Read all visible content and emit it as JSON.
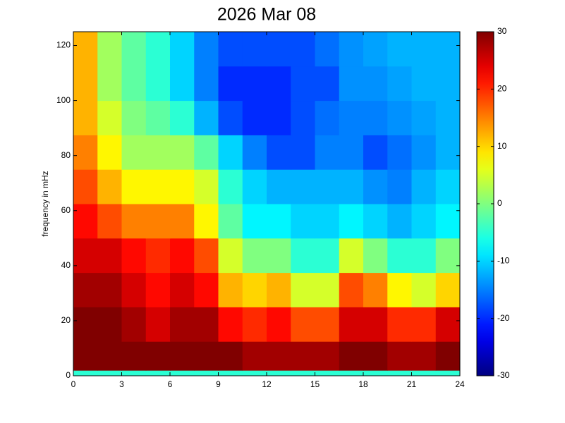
{
  "chart_data": {
    "type": "heatmap",
    "title": "2026 Mar 08",
    "y_label": "frequency in mHz",
    "x_edges": [
      0,
      1.5,
      3,
      4.5,
      6,
      7.5,
      9,
      10.5,
      12,
      13.5,
      15,
      16.5,
      18,
      19.5,
      21,
      22.5,
      24
    ],
    "y_edges": [
      0,
      2,
      12.5,
      25,
      37.5,
      50,
      62.5,
      75,
      87.5,
      100,
      112.5,
      125
    ],
    "z": [
      [
        -5,
        -5,
        -5,
        -5,
        -5,
        -5,
        -5,
        -5,
        -5,
        -5,
        -5,
        -5,
        -5,
        -5,
        -5,
        -5
      ],
      [
        30,
        30,
        30,
        30,
        30,
        30,
        30,
        28,
        28,
        28,
        28,
        30,
        30,
        28,
        28,
        30
      ],
      [
        30,
        30,
        28,
        25,
        28,
        28,
        22,
        20,
        22,
        18,
        18,
        25,
        25,
        20,
        20,
        25
      ],
      [
        28,
        28,
        25,
        22,
        25,
        22,
        12,
        10,
        12,
        5,
        5,
        18,
        15,
        8,
        5,
        10
      ],
      [
        25,
        25,
        22,
        20,
        22,
        18,
        5,
        0,
        0,
        -5,
        -5,
        5,
        0,
        -5,
        -5,
        0
      ],
      [
        22,
        18,
        15,
        15,
        15,
        8,
        -2,
        -8,
        -8,
        -10,
        -10,
        -8,
        -10,
        -12,
        -10,
        -8
      ],
      [
        18,
        12,
        8,
        8,
        8,
        5,
        -5,
        -10,
        -12,
        -12,
        -12,
        -12,
        -14,
        -15,
        -12,
        -10
      ],
      [
        15,
        8,
        2,
        2,
        2,
        -2,
        -10,
        -15,
        -18,
        -18,
        -15,
        -15,
        -18,
        -16,
        -14,
        -12
      ],
      [
        12,
        5,
        0,
        -2,
        -5,
        -12,
        -18,
        -20,
        -20,
        -18,
        -16,
        -15,
        -15,
        -14,
        -13,
        -12
      ],
      [
        12,
        2,
        -2,
        -5,
        -10,
        -15,
        -20,
        -20,
        -20,
        -18,
        -18,
        -14,
        -14,
        -13,
        -12,
        -12
      ],
      [
        12,
        2,
        -2,
        -5,
        -10,
        -15,
        -18,
        -18,
        -18,
        -18,
        -16,
        -14,
        -13,
        -12,
        -12,
        -12
      ]
    ],
    "xlim": [
      0,
      24
    ],
    "ylim": [
      0,
      125
    ],
    "xticks": [
      0,
      3,
      6,
      9,
      12,
      15,
      18,
      21,
      24
    ],
    "yticks": [
      0,
      20,
      40,
      60,
      80,
      100,
      120
    ],
    "colormap": "jet",
    "colorbar": {
      "clim": [
        -30,
        30
      ],
      "ticks": [
        -30,
        -20,
        -10,
        0,
        10,
        20,
        30
      ]
    }
  }
}
